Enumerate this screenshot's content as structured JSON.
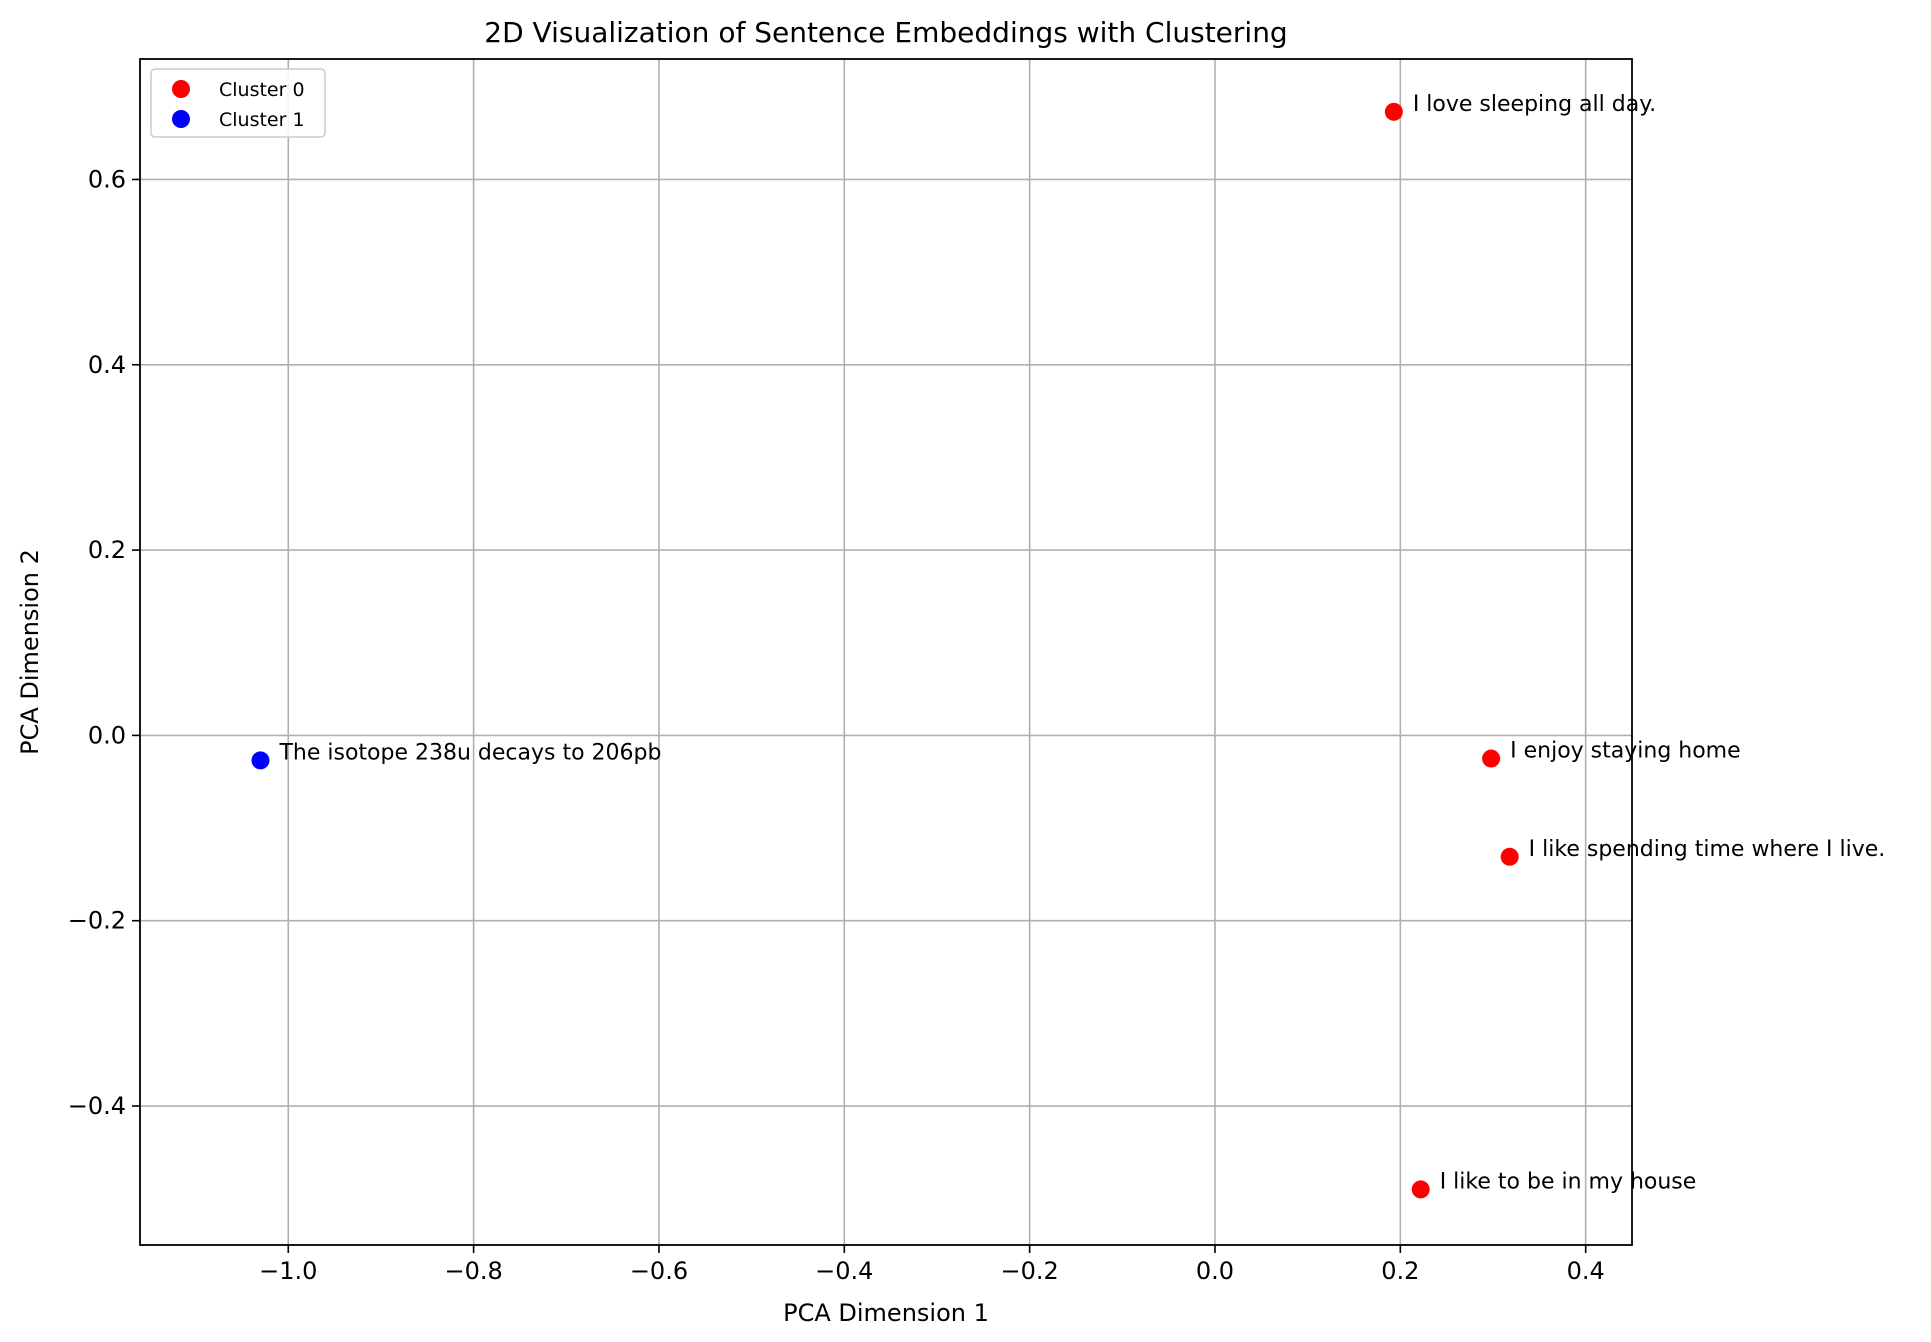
{
  "chart_data": {
    "type": "scatter",
    "title": "2D Visualization of Sentence Embeddings with Clustering",
    "xlabel": "PCA Dimension 1",
    "ylabel": "PCA Dimension 2",
    "xlim": [
      -1.16,
      0.45
    ],
    "ylim": [
      -0.55,
      0.73
    ],
    "xticks": [
      -1.0,
      -0.8,
      -0.6,
      -0.4,
      -0.2,
      0.0,
      0.2,
      0.4
    ],
    "xtick_labels": [
      "−1.0",
      "−0.8",
      "−0.6",
      "−0.4",
      "−0.2",
      "0.0",
      "0.2",
      "0.4"
    ],
    "yticks": [
      -0.4,
      -0.2,
      0.0,
      0.2,
      0.4,
      0.6
    ],
    "ytick_labels": [
      "−0.4",
      "−0.2",
      "0.0",
      "0.2",
      "0.4",
      "0.6"
    ],
    "grid": true,
    "legend_position": "top-left",
    "series": [
      {
        "name": "Cluster 0",
        "color": "#ff0000",
        "points": [
          {
            "x": 0.193,
            "y": 0.673,
            "label": "I love sleeping all day."
          },
          {
            "x": 0.298,
            "y": -0.025,
            "label": "I enjoy staying home"
          },
          {
            "x": 0.318,
            "y": -0.131,
            "label": "I like spending time where I live."
          },
          {
            "x": 0.222,
            "y": -0.49,
            "label": "I like to be in my house"
          }
        ]
      },
      {
        "name": "Cluster 1",
        "color": "#0000ff",
        "points": [
          {
            "x": -1.03,
            "y": -0.027,
            "label": "The isotope 238u decays to 206pb"
          }
        ]
      }
    ]
  }
}
